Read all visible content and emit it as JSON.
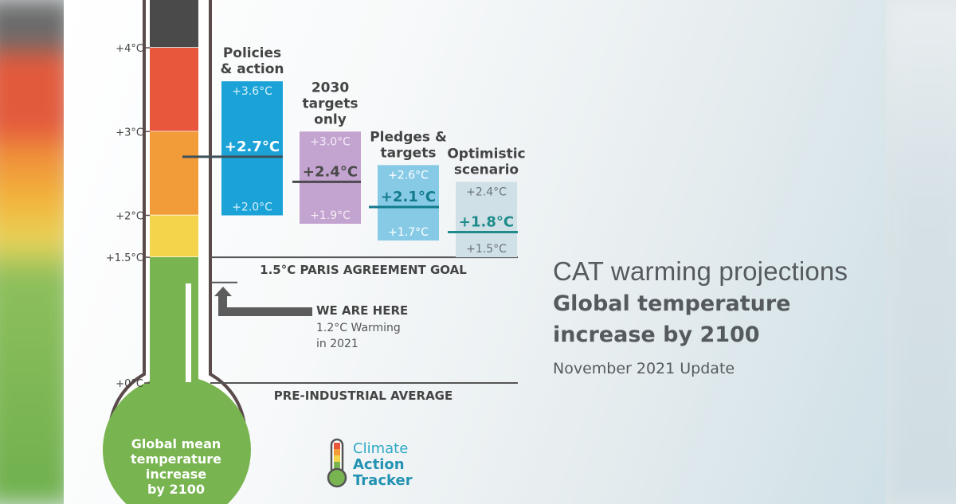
{
  "header": {
    "title_line1": "CAT warming projections",
    "title_line2": "Global temperature",
    "title_line3": "increase by 2100",
    "subtitle": "November 2021 Update"
  },
  "thermometer": {
    "bulb_label": [
      "Global mean",
      "temperature",
      "increase",
      "by 2100"
    ],
    "ticks": [
      "+4°C",
      "+3°C",
      "+2°C",
      "+1.5°C",
      "+0°C"
    ],
    "bands": [
      {
        "from": 4.0,
        "to": 4.6,
        "color": "#4a4a4a"
      },
      {
        "from": 3.0,
        "to": 4.0,
        "color": "#e8573b"
      },
      {
        "from": 2.0,
        "to": 3.0,
        "color": "#f19c39"
      },
      {
        "from": 1.5,
        "to": 2.0,
        "color": "#f4d44a"
      },
      {
        "from": 0.0,
        "to": 1.5,
        "color": "#78b450"
      }
    ]
  },
  "reference_lines": {
    "paris_goal": "1.5°C PARIS AGREEMENT GOAL",
    "preindustrial": "PRE-INDUSTRIAL AVERAGE",
    "here_title": "WE ARE HERE",
    "here_line1": "1.2°C Warming",
    "here_line2": "in 2021"
  },
  "chart_data": {
    "type": "bar",
    "title": "Global temperature increase by 2100",
    "ylabel": "",
    "yticks": [
      0,
      1.5,
      2,
      3,
      4
    ],
    "ylim": [
      0,
      4.6
    ],
    "reference": {
      "paris_goal": 1.5,
      "preindustrial": 0,
      "current": 1.2
    },
    "series": [
      {
        "label": [
          "Policies",
          "& action"
        ],
        "low": 2.0,
        "high": 3.6,
        "mid": 2.7,
        "low_label": "+2.0°C",
        "high_label": "+3.6°C",
        "mid_label": "+2.7°C",
        "color": "#1ba3d8",
        "line_color": "#3d4f58",
        "mid_color": "#ffffff",
        "range_text": "#d6f0fa"
      },
      {
        "label": [
          "2030",
          "targets",
          "only"
        ],
        "low": 1.9,
        "high": 3.0,
        "mid": 2.4,
        "low_label": "+1.9°C",
        "high_label": "+3.0°C",
        "mid_label": "+2.4°C",
        "color": "#c3a3cf",
        "line_color": "#4a4a50",
        "mid_color": "#4a4a4a",
        "range_text": "#f4ecf7"
      },
      {
        "label": [
          "Pledges &",
          "targets"
        ],
        "low": 1.7,
        "high": 2.6,
        "mid": 2.1,
        "low_label": "+1.7°C",
        "high_label": "+2.6°C",
        "mid_label": "+2.1°C",
        "color": "#86cae6",
        "line_color": "#127a8c",
        "mid_color": "#127a8c",
        "range_text": "#ffffff"
      },
      {
        "label": [
          "Optimistic",
          "scenario"
        ],
        "low": 1.5,
        "high": 2.4,
        "mid": 1.8,
        "low_label": "+1.5°C",
        "high_label": "+2.4°C",
        "mid_label": "+1.8°C",
        "color": "#cfe0e6",
        "line_color": "#1f8b8b",
        "mid_color": "#1f8b8b",
        "range_text": "#6b7478"
      }
    ]
  },
  "logo": {
    "line1": "Climate",
    "line2": "Action",
    "line3": "Tracker"
  }
}
